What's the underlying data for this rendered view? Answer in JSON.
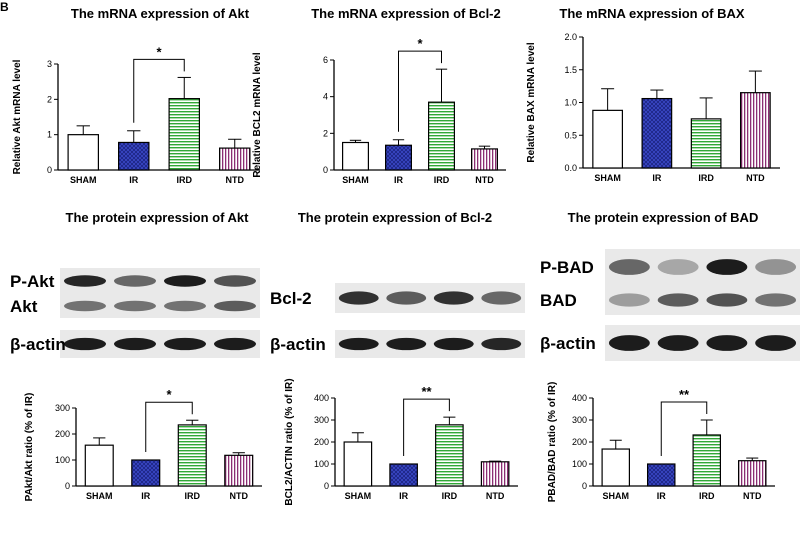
{
  "figure": {
    "panel_letter": "B"
  },
  "colors": {
    "axis": "#000000",
    "band_dark": "#111111",
    "blot_bg": "#e9e9e9",
    "sham": "#ffffff",
    "ir": "#3b49c9",
    "ird": "#31a837",
    "ntd": "#8c2e73"
  },
  "groups": [
    "SHAM",
    "IR",
    "IRD",
    "NTD"
  ],
  "chart_data": [
    {
      "id": "akt_mrna",
      "type": "bar",
      "title": "The mRNA expression of Akt",
      "ylabel": "Relative Akt mRNA level",
      "ylim": [
        0,
        3
      ],
      "yticks": [
        0,
        1,
        2,
        3
      ],
      "categories": [
        "SHAM",
        "IR",
        "IRD",
        "NTD"
      ],
      "values": [
        1.0,
        0.78,
        2.02,
        0.62
      ],
      "errors": [
        0.25,
        0.33,
        0.6,
        0.25
      ],
      "significance": [
        {
          "from": "IR",
          "to": "IRD",
          "label": "*"
        }
      ]
    },
    {
      "id": "bcl2_mrna",
      "type": "bar",
      "title": "The mRNA expression of Bcl-2",
      "ylabel": "Relative BCL2 mRNA level",
      "ylim": [
        0,
        6
      ],
      "yticks": [
        0,
        2,
        4,
        6
      ],
      "categories": [
        "SHAM",
        "IR",
        "IRD",
        "NTD"
      ],
      "values": [
        1.5,
        1.35,
        3.7,
        1.15
      ],
      "errors": [
        0.12,
        0.3,
        1.8,
        0.15
      ],
      "significance": [
        {
          "from": "IR",
          "to": "IRD",
          "label": "*"
        }
      ]
    },
    {
      "id": "bax_mrna",
      "type": "bar",
      "title": "The mRNA expression of BAX",
      "ylabel": "Relative BAX mRNA level",
      "ylim": [
        0,
        2
      ],
      "yticks": [
        0.0,
        0.5,
        1.0,
        1.5,
        2.0
      ],
      "categories": [
        "SHAM",
        "IR",
        "IRD",
        "NTD"
      ],
      "values": [
        0.88,
        1.06,
        0.75,
        1.15
      ],
      "errors": [
        0.33,
        0.13,
        0.32,
        0.33
      ],
      "significance": []
    },
    {
      "id": "pakt_ratio",
      "type": "bar",
      "title": "The protein expression of Akt",
      "ylabel": "PAkt/Akt ratio (% of IR)",
      "ylim": [
        0,
        300
      ],
      "yticks": [
        0,
        100,
        200,
        300
      ],
      "categories": [
        "SHAM",
        "IR",
        "IRD",
        "NTD"
      ],
      "values": [
        157,
        100,
        235,
        118
      ],
      "errors": [
        28,
        0,
        18,
        10
      ],
      "significance": [
        {
          "from": "IR",
          "to": "IRD",
          "label": "*"
        }
      ]
    },
    {
      "id": "bcl2_ratio",
      "type": "bar",
      "title": "The protein expression of Bcl-2",
      "ylabel": "BCL2/ACTIN ratio (% of IR)",
      "ylim": [
        0,
        400
      ],
      "yticks": [
        0,
        100,
        200,
        300,
        400
      ],
      "categories": [
        "SHAM",
        "IR",
        "IRD",
        "NTD"
      ],
      "values": [
        200,
        100,
        278,
        110
      ],
      "errors": [
        42,
        0,
        35,
        3
      ],
      "significance": [
        {
          "from": "IR",
          "to": "IRD",
          "label": "**"
        }
      ]
    },
    {
      "id": "pbad_ratio",
      "type": "bar",
      "title": "The protein expression of BAD",
      "ylabel": "PBAD/BAD ratio (% of IR)",
      "ylim": [
        0,
        400
      ],
      "yticks": [
        0,
        100,
        200,
        300,
        400
      ],
      "categories": [
        "SHAM",
        "IR",
        "IRD",
        "NTD"
      ],
      "values": [
        168,
        100,
        232,
        115
      ],
      "errors": [
        40,
        0,
        68,
        12
      ],
      "significance": [
        {
          "from": "IR",
          "to": "IRD",
          "label": "**"
        }
      ]
    }
  ],
  "blots": [
    {
      "id": "akt_blot",
      "rows": [
        {
          "label": "P-Akt",
          "band_intensity": [
            0.9,
            0.6,
            0.95,
            0.7
          ]
        },
        {
          "label": "Akt",
          "band_intensity": [
            0.55,
            0.55,
            0.55,
            0.65
          ]
        },
        {
          "label": "β-actin",
          "band_intensity": [
            0.95,
            0.95,
            0.95,
            0.95
          ]
        }
      ]
    },
    {
      "id": "bcl2_blot",
      "rows": [
        {
          "label": "Bcl-2",
          "band_intensity": [
            0.85,
            0.65,
            0.85,
            0.6
          ]
        },
        {
          "label": "β-actin",
          "band_intensity": [
            0.95,
            0.95,
            0.95,
            0.9
          ]
        }
      ]
    },
    {
      "id": "bad_blot",
      "rows": [
        {
          "label": "P-BAD",
          "band_intensity": [
            0.6,
            0.3,
            0.95,
            0.4
          ]
        },
        {
          "label": "BAD",
          "band_intensity": [
            0.35,
            0.65,
            0.7,
            0.55
          ]
        },
        {
          "label": "β-actin",
          "band_intensity": [
            0.95,
            0.95,
            0.95,
            0.95
          ]
        }
      ]
    }
  ]
}
